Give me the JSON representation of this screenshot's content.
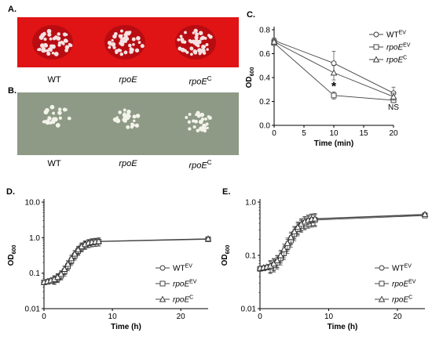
{
  "panels": {
    "A": {
      "letter": "A.",
      "labels": [
        {
          "main": "WT",
          "sup": ""
        },
        {
          "main": "rpoE",
          "sup": ""
        },
        {
          "main": "rpoE",
          "sup": "C"
        }
      ],
      "background_color": "#e01414"
    },
    "B": {
      "letter": "B.",
      "labels": [
        {
          "main": "WT",
          "sup": ""
        },
        {
          "main": "rpoE",
          "sup": ""
        },
        {
          "main": "rpoE",
          "sup": "C"
        }
      ],
      "background_color": "#8e9a86"
    }
  },
  "legend_entries": [
    {
      "main": "WT",
      "sup": "EV",
      "marker": "circle"
    },
    {
      "main": "rpoE",
      "sup": "EV",
      "marker": "square"
    },
    {
      "main": "rpoE",
      "sup": "C",
      "marker": "triangle"
    }
  ],
  "chart_data": [
    {
      "panel": "C.",
      "type": "line",
      "ylabel_main": "OD",
      "ylabel_sub": "600",
      "xlabel": "Time (min)",
      "x_ticks": [
        0,
        5,
        10,
        15,
        20
      ],
      "y_ticks": [
        "0.0",
        "0.2",
        "0.4",
        "0.6",
        "0.8"
      ],
      "xlim": [
        0,
        20
      ],
      "ylim": [
        0,
        0.8
      ],
      "annotations": [
        {
          "text": "*",
          "x": 10,
          "y": 0.33
        },
        {
          "text": "NS",
          "x": 20,
          "y": 0.13
        }
      ],
      "series": [
        {
          "marker": "circle",
          "x": [
            0,
            10,
            20
          ],
          "y": [
            0.71,
            0.52,
            0.27
          ],
          "err": [
            0.02,
            0.1,
            0.05
          ]
        },
        {
          "marker": "square",
          "x": [
            0,
            10,
            20
          ],
          "y": [
            0.69,
            0.25,
            0.21
          ],
          "err": [
            0.02,
            0.03,
            0.02
          ]
        },
        {
          "marker": "triangle",
          "x": [
            0,
            10,
            20
          ],
          "y": [
            0.7,
            0.44,
            0.24
          ],
          "err": [
            0.02,
            0.06,
            0.03
          ]
        }
      ]
    },
    {
      "panel": "D.",
      "type": "line",
      "scale": "log",
      "ylabel_main": "OD",
      "ylabel_sub": "600",
      "xlabel": "Time (h)",
      "x_ticks": [
        0,
        10,
        20
      ],
      "y_ticks": [
        "0.01",
        "0.1",
        "1.0",
        "10.0"
      ],
      "xlim": [
        0,
        24
      ],
      "ylim": [
        0.01,
        10
      ],
      "series": [
        {
          "marker": "circle",
          "x": [
            0,
            0.5,
            1,
            1.5,
            2,
            2.5,
            3,
            3.5,
            4,
            4.5,
            5,
            5.5,
            6,
            6.5,
            7,
            7.5,
            8,
            24
          ],
          "y": [
            0.055,
            0.058,
            0.062,
            0.066,
            0.075,
            0.09,
            0.12,
            0.17,
            0.24,
            0.33,
            0.44,
            0.55,
            0.64,
            0.7,
            0.74,
            0.76,
            0.78,
            0.92
          ]
        },
        {
          "marker": "square",
          "x": [
            0,
            0.5,
            1,
            1.5,
            2,
            2.5,
            3,
            3.5,
            4,
            4.5,
            5,
            5.5,
            6,
            6.5,
            7,
            7.5,
            8,
            24
          ],
          "y": [
            0.055,
            0.057,
            0.06,
            0.064,
            0.072,
            0.085,
            0.11,
            0.155,
            0.22,
            0.31,
            0.42,
            0.53,
            0.62,
            0.69,
            0.73,
            0.75,
            0.77,
            0.9
          ]
        },
        {
          "marker": "triangle",
          "x": [
            0,
            0.5,
            1,
            1.5,
            2,
            2.5,
            3,
            3.5,
            4,
            4.5,
            5,
            5.5,
            6,
            6.5,
            7,
            7.5,
            8,
            24
          ],
          "y": [
            0.056,
            0.059,
            0.063,
            0.068,
            0.078,
            0.095,
            0.13,
            0.18,
            0.26,
            0.35,
            0.46,
            0.57,
            0.65,
            0.71,
            0.75,
            0.77,
            0.79,
            0.93
          ]
        }
      ]
    },
    {
      "panel": "E.",
      "type": "line",
      "scale": "log",
      "ylabel_main": "OD",
      "ylabel_sub": "600",
      "xlabel": "Time (h)",
      "x_ticks": [
        0,
        10,
        20
      ],
      "y_ticks": [
        "0.01",
        "0.1",
        "1.0"
      ],
      "xlim": [
        0,
        24
      ],
      "ylim": [
        0.01,
        1
      ],
      "series": [
        {
          "marker": "circle",
          "x": [
            0,
            0.5,
            1,
            1.5,
            2,
            2.5,
            3,
            3.5,
            4,
            4.5,
            5,
            5.5,
            6,
            6.5,
            7,
            7.5,
            8,
            24
          ],
          "y": [
            0.057,
            0.058,
            0.06,
            0.063,
            0.068,
            0.078,
            0.095,
            0.12,
            0.16,
            0.21,
            0.27,
            0.33,
            0.38,
            0.42,
            0.45,
            0.47,
            0.48,
            0.58
          ]
        },
        {
          "marker": "square",
          "x": [
            0,
            0.5,
            1,
            1.5,
            2,
            2.5,
            3,
            3.5,
            4,
            4.5,
            5,
            5.5,
            6,
            6.5,
            7,
            7.5,
            8,
            24
          ],
          "y": [
            0.056,
            0.057,
            0.059,
            0.061,
            0.065,
            0.073,
            0.088,
            0.11,
            0.145,
            0.19,
            0.25,
            0.31,
            0.36,
            0.4,
            0.43,
            0.45,
            0.46,
            0.56
          ]
        },
        {
          "marker": "triangle",
          "x": [
            0,
            0.5,
            1,
            1.5,
            2,
            2.5,
            3,
            3.5,
            4,
            4.5,
            5,
            5.5,
            6,
            6.5,
            7,
            7.5,
            8,
            24
          ],
          "y": [
            0.058,
            0.059,
            0.061,
            0.064,
            0.07,
            0.08,
            0.1,
            0.13,
            0.17,
            0.22,
            0.28,
            0.34,
            0.39,
            0.43,
            0.46,
            0.48,
            0.49,
            0.59
          ]
        }
      ]
    }
  ]
}
